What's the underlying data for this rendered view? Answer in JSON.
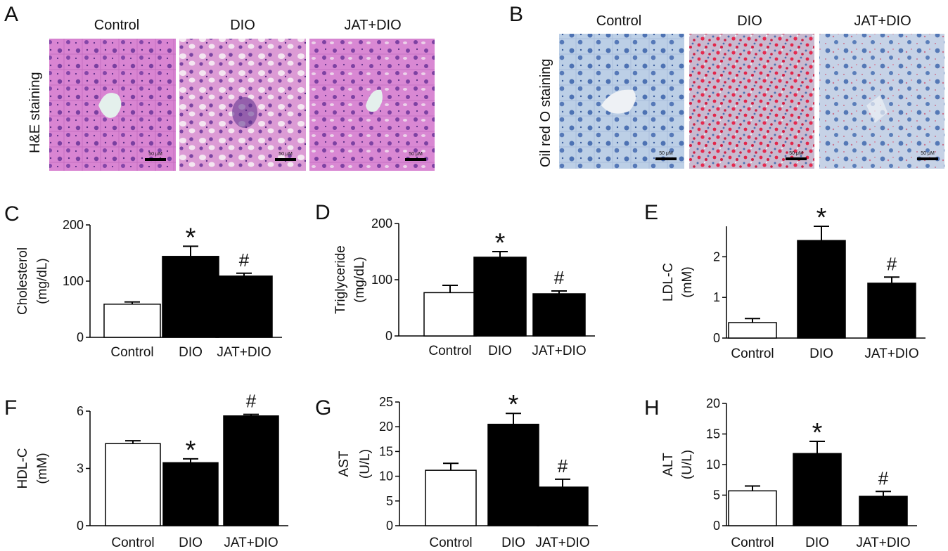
{
  "panels_images": [
    {
      "label": "A",
      "stain_label": "H&E staining",
      "scale_bar": "50 μM",
      "images": [
        {
          "group": "Control",
          "kind": "he-control"
        },
        {
          "group": "DIO",
          "kind": "he-dio"
        },
        {
          "group": "JAT+DIO",
          "kind": "he-jat"
        }
      ]
    },
    {
      "label": "B",
      "stain_label": "Oil red O staining",
      "scale_bar": "50 μM",
      "images": [
        {
          "group": "Control",
          "kind": "oro-control"
        },
        {
          "group": "DIO",
          "kind": "oro-dio"
        },
        {
          "group": "JAT+DIO",
          "kind": "oro-jat"
        }
      ]
    }
  ],
  "colors": {
    "bar_control": "#ffffff",
    "bar_treated": "#000000",
    "he_bg": "#d27ccc",
    "oro_bg": "#b8cbe3"
  },
  "chart_data": [
    {
      "panel": "C",
      "type": "bar",
      "categories": [
        "Control",
        "DIO",
        "JAT+DIO"
      ],
      "values": [
        59,
        144,
        109
      ],
      "errors": [
        4,
        18,
        5
      ],
      "annotations": [
        "",
        "*",
        "#"
      ],
      "ylabel_line1": "Cholesterol",
      "ylabel_line2": "(mg/dL)",
      "ylim": [
        0,
        200
      ],
      "yticks": [
        "0",
        "100",
        "200"
      ]
    },
    {
      "panel": "D",
      "type": "bar",
      "categories": [
        "Control",
        "DIO",
        "JAT+DIO"
      ],
      "values": [
        77,
        140,
        75
      ],
      "errors": [
        13,
        10,
        5
      ],
      "annotations": [
        "",
        "*",
        "#"
      ],
      "ylabel_line1": "Triglyceride",
      "ylabel_line2": "(mg/dL)",
      "ylim": [
        0,
        200
      ],
      "yticks": [
        "0",
        "100",
        "200"
      ]
    },
    {
      "panel": "E",
      "type": "bar",
      "categories": [
        "Control",
        "DIO",
        "JAT+DIO"
      ],
      "values": [
        0.38,
        2.4,
        1.35
      ],
      "errors": [
        0.1,
        0.35,
        0.15
      ],
      "annotations": [
        "",
        "*",
        "#"
      ],
      "ylabel_line1": "LDL-C",
      "ylabel_line2": "(mM)",
      "ylim": [
        0,
        2.75
      ],
      "yticks": [
        "0",
        "1",
        "2"
      ]
    },
    {
      "panel": "F",
      "type": "bar",
      "categories": [
        "Control",
        "DIO",
        "JAT+DIO"
      ],
      "values": [
        4.3,
        3.3,
        5.75
      ],
      "errors": [
        0.15,
        0.2,
        0.08
      ],
      "annotations": [
        "",
        "*",
        "#"
      ],
      "ylabel_line1": "HDL-C",
      "ylabel_line2": "(mM)",
      "ylim": [
        0,
        6
      ],
      "yticks": [
        "0",
        "3",
        "6"
      ]
    },
    {
      "panel": "G",
      "type": "bar",
      "categories": [
        "Control",
        "DIO",
        "JAT+DIO"
      ],
      "values": [
        11.2,
        20.5,
        7.8
      ],
      "errors": [
        1.4,
        2.2,
        1.6
      ],
      "annotations": [
        "",
        "*",
        "#"
      ],
      "ylabel_line1": "AST",
      "ylabel_line2": "(U/L)",
      "ylim": [
        0,
        25
      ],
      "yticks": [
        "0",
        "5",
        "10",
        "15",
        "20",
        "25"
      ]
    },
    {
      "panel": "H",
      "type": "bar",
      "categories": [
        "Control",
        "DIO",
        "JAT+DIO"
      ],
      "values": [
        5.7,
        11.8,
        4.8
      ],
      "errors": [
        0.8,
        2.0,
        0.8
      ],
      "annotations": [
        "",
        "*",
        "#"
      ],
      "ylabel_line1": "ALT",
      "ylabel_line2": "(U/L)",
      "ylim": [
        0,
        20
      ],
      "yticks": [
        "0",
        "5",
        "10",
        "15",
        "20"
      ]
    }
  ]
}
